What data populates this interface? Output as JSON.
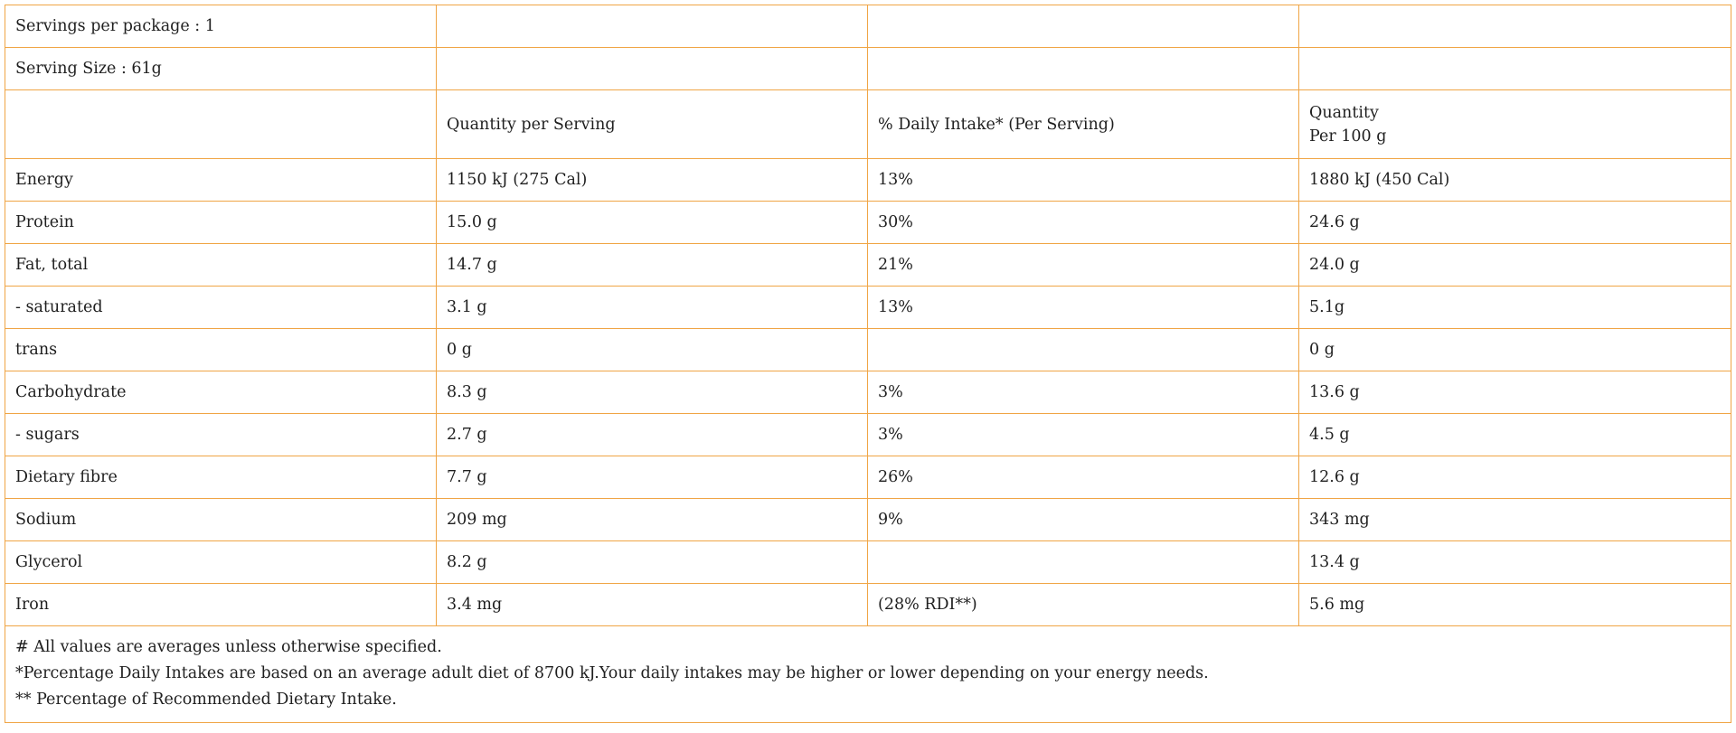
{
  "servings_per_package": "Servings per package : 1",
  "serving_size": "Serving Size : 61g",
  "header": {
    "col1": "",
    "col2": "Quantity per Serving",
    "col3": "% Daily Intake* (Per Serving)",
    "col4_line1": "Quantity",
    "col4_line2": "Per 100 g"
  },
  "rows": [
    {
      "name": "Energy",
      "per_serving": "1150 kJ (275 Cal)",
      "daily_intake": "13%",
      "per_100g": "1880 kJ (450 Cal)"
    },
    {
      "name": "Protein",
      "per_serving": "15.0 g",
      "daily_intake": "30%",
      "per_100g": "24.6 g"
    },
    {
      "name": "Fat, total",
      "per_serving": "14.7 g",
      "daily_intake": "21%",
      "per_100g": "24.0 g"
    },
    {
      "name": "- saturated",
      "per_serving": "3.1 g",
      "daily_intake": "13%",
      "per_100g": "5.1g"
    },
    {
      "name": "trans",
      "per_serving": "0 g",
      "daily_intake": "",
      "per_100g": "0 g"
    },
    {
      "name": "Carbohydrate",
      "per_serving": "8.3 g",
      "daily_intake": "3%",
      "per_100g": "13.6 g"
    },
    {
      "name": "- sugars",
      "per_serving": "2.7 g",
      "daily_intake": "3%",
      "per_100g": "4.5 g"
    },
    {
      "name": "Dietary fibre",
      "per_serving": "7.7 g",
      "daily_intake": "26%",
      "per_100g": "12.6 g"
    },
    {
      "name": "Sodium",
      "per_serving": "209 mg",
      "daily_intake": "9%",
      "per_100g": "343 mg"
    },
    {
      "name": "Glycerol",
      "per_serving": "8.2 g",
      "daily_intake": "",
      "per_100g": "13.4 g"
    },
    {
      "name": "Iron",
      "per_serving": "3.4 mg",
      "daily_intake": "(28% RDI**)",
      "per_100g": "5.6 mg"
    }
  ],
  "footnotes": [
    "# All values are averages unless otherwise specified.",
    "*Percentage Daily Intakes are based on an average adult diet of 8700 kJ.Your daily intakes may be higher or lower depending on your energy needs.",
    "** Percentage of Recommended Dietary Intake."
  ],
  "colors": {
    "border": "#f0a545",
    "text": "#1f1f1f",
    "background": "#ffffff"
  }
}
